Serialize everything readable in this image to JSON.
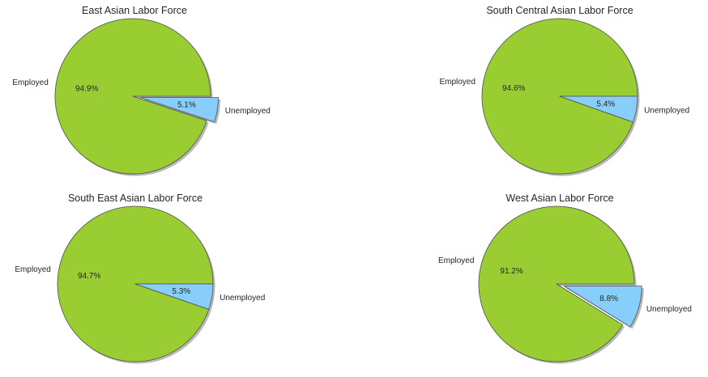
{
  "chart_data": [
    {
      "type": "pie",
      "title": "East Asian Labor Force",
      "labels": [
        "Employed",
        "Unemployed"
      ],
      "values": [
        94.9,
        5.1
      ],
      "autopct": [
        "94.9%",
        "5.1%"
      ],
      "explode": [
        0,
        0.1
      ],
      "shadow": true,
      "colors": [
        "#9acd32",
        "#87cefa"
      ]
    },
    {
      "type": "pie",
      "title": "South Central Asian Labor Force",
      "labels": [
        "Employed",
        "Unemployed"
      ],
      "values": [
        94.6,
        5.4
      ],
      "autopct": [
        "94.6%",
        "5.4%"
      ],
      "explode": [
        0,
        0
      ],
      "shadow": true,
      "colors": [
        "#9acd32",
        "#87cefa"
      ]
    },
    {
      "type": "pie",
      "title": "South East Asian Labor Force",
      "labels": [
        "Employed",
        "Unemployed"
      ],
      "values": [
        94.7,
        5.3
      ],
      "autopct": [
        "94.7%",
        "5.3%"
      ],
      "explode": [
        0,
        0
      ],
      "shadow": true,
      "colors": [
        "#9acd32",
        "#87cefa"
      ]
    },
    {
      "type": "pie",
      "title": "West Asian Labor Force",
      "labels": [
        "Employed",
        "Unemployed"
      ],
      "values": [
        91.2,
        8.8
      ],
      "autopct": [
        "91.2%",
        "8.8%"
      ],
      "explode": [
        0,
        0.1
      ],
      "shadow": true,
      "colors": [
        "#9acd32",
        "#87cefa"
      ]
    }
  ]
}
